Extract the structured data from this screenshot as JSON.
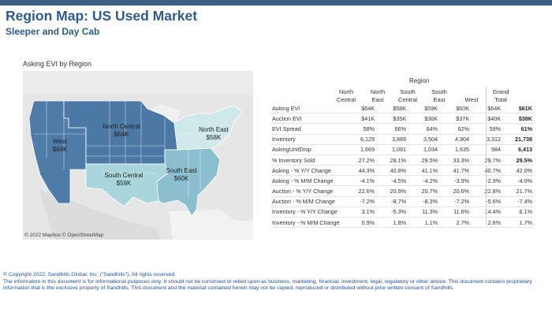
{
  "title": "Region Map: US Used Market",
  "subtitle": "Sleeper and Day Cab",
  "map": {
    "label": "Asking EVI by Region",
    "attribution": "© 2022 Mapbox © OpenStreetMap",
    "regions": [
      {
        "name": "West",
        "value": "$64K",
        "color": "#4f7ba8"
      },
      {
        "name": "North Central",
        "value": "$64K",
        "color": "#4c78a6"
      },
      {
        "name": "North East",
        "value": "$58K",
        "color": "#cfe9ea"
      },
      {
        "name": "South Central",
        "value": "$59K",
        "color": "#a9d6dd"
      },
      {
        "name": "South East",
        "value": "$60K",
        "color": "#8bbfd0"
      }
    ]
  },
  "table": {
    "group_header": "Region",
    "columns": [
      {
        "line1": "North",
        "line2": "Central"
      },
      {
        "line1": "North",
        "line2": "East"
      },
      {
        "line1": "South",
        "line2": "Central"
      },
      {
        "line1": "South",
        "line2": "East"
      },
      {
        "line1": "",
        "line2": "West"
      },
      {
        "line1": "Grand",
        "line2": "Total"
      }
    ],
    "rows": [
      {
        "label": "Asking EVI",
        "values": [
          "$64K",
          "$58K",
          "$59K",
          "$60K",
          "$64K"
        ],
        "total": "$61K"
      },
      {
        "label": "Auction EVI",
        "values": [
          "$41K",
          "$35K",
          "$36K",
          "$37K",
          "$40K"
        ],
        "total": "$38K"
      },
      {
        "label": "EVI Spread",
        "values": [
          "58%",
          "66%",
          "64%",
          "62%",
          "59%"
        ],
        "total": "61%"
      },
      {
        "label": "Inventory",
        "values": [
          "6,129",
          "3,889",
          "3,504",
          "4,904",
          "3,312"
        ],
        "total": "21,738"
      },
      {
        "label": "AskingUnitDrop",
        "values": [
          "1,669",
          "1,091",
          "1,034",
          "1,635",
          "984"
        ],
        "total": "6,413"
      },
      {
        "label": "% Inventory Sold",
        "values": [
          "27.2%",
          "28.1%",
          "29.5%",
          "33.3%",
          "29.7%"
        ],
        "total": "29.5%"
      }
    ],
    "change_rows": [
      {
        "label": "Asking - % Y/Y Change",
        "values": [
          "44.3%",
          "40.8%",
          "41.1%",
          "41.7%",
          "40.7%"
        ],
        "total": "42.0%"
      },
      {
        "label": "Asking - % M/M Change",
        "values": [
          "-4.1%",
          "-4.5%",
          "-4.2%",
          "-3.9%",
          "-2.9%"
        ],
        "total": "-4.0%"
      },
      {
        "label": "Auction - % Y/Y Change",
        "values": [
          "22.6%",
          "20.9%",
          "20.7%",
          "20.6%",
          "22.8%"
        ],
        "total": "21.7%"
      },
      {
        "label": "Auction - % M/M Change",
        "values": [
          "-7.2%",
          "-8.7%",
          "-8.3%",
          "-7.2%",
          "-5.6%"
        ],
        "total": "-7.4%"
      },
      {
        "label": "Inventory - % Y/Y Change",
        "values": [
          "3.1%",
          "-5.3%",
          "11.3%",
          "11.6%",
          "14.4%"
        ],
        "total": "6.1%"
      },
      {
        "label": "Inventory - % M/M Change",
        "values": [
          "0.9%",
          "1.8%",
          "1.1%",
          "2.7%",
          "2.6%"
        ],
        "total": "1.7%"
      }
    ]
  },
  "footer": {
    "copyright": "© Copyright 2022, Sandhills Global, Inc. (\"Sandhills\"). All rights reserved.",
    "line1": "The information in this document is for informational purposes only.  It should not be construed or relied upon as business, marketing, financial, investment, legal, regulatory or other advice. This document contains proprietary",
    "line2": "information that is the exclusive property of Sandhills. This document and the material contained herein may not be copied, reproduced or distributed without prior written consent of Sandhills."
  }
}
